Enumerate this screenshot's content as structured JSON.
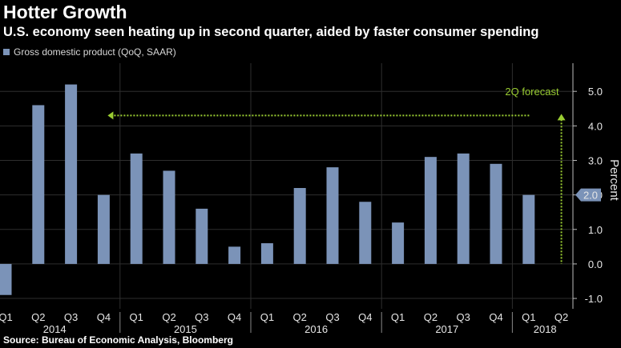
{
  "header": {
    "title": "Hotter Growth",
    "subtitle": "U.S. economy seen heating up in second quarter, aided by faster consumer spending"
  },
  "footer": {
    "source": "Source: Bureau of Economic Analysis, Bloomberg"
  },
  "colors": {
    "background": "#000000",
    "bar": "#7b93b8",
    "grid": "#2e2e2e",
    "forecast": "#9acd32",
    "text": "#e6e6e6"
  },
  "chart_data": {
    "type": "bar",
    "legend": "Gross domestic product (QoQ, SAAR)",
    "legend_position": "top-left",
    "categories": [
      "Q1",
      "Q2",
      "Q3",
      "Q4",
      "Q1",
      "Q2",
      "Q3",
      "Q4",
      "Q1",
      "Q2",
      "Q3",
      "Q4",
      "Q1",
      "Q2",
      "Q3",
      "Q4",
      "Q1",
      "Q2"
    ],
    "years": [
      {
        "label": "2014",
        "start": 0,
        "end": 3
      },
      {
        "label": "2015",
        "start": 4,
        "end": 7
      },
      {
        "label": "2016",
        "start": 8,
        "end": 11
      },
      {
        "label": "2017",
        "start": 12,
        "end": 15
      },
      {
        "label": "2018",
        "start": 16,
        "end": 17
      }
    ],
    "series": [
      {
        "name": "Gross domestic product (QoQ, SAAR)",
        "values": [
          -0.9,
          4.6,
          5.2,
          2.0,
          3.2,
          2.7,
          1.6,
          0.5,
          0.6,
          2.2,
          2.8,
          1.8,
          1.2,
          3.1,
          3.2,
          2.9,
          2.0,
          null
        ]
      }
    ],
    "ylabel": "Percent",
    "yticks": [
      "-1.0",
      "0.0",
      "1.0",
      "2.0",
      "3.0",
      "4.0",
      "5.0"
    ],
    "ylim": [
      -1.3,
      5.7
    ],
    "y_axis_side": "right",
    "last_value_label": "2.0",
    "last_value": 2.0,
    "grid": true,
    "annotation": {
      "text": "2Q forecast",
      "level": 4.3,
      "from_category": 3,
      "to_category": 17
    }
  }
}
